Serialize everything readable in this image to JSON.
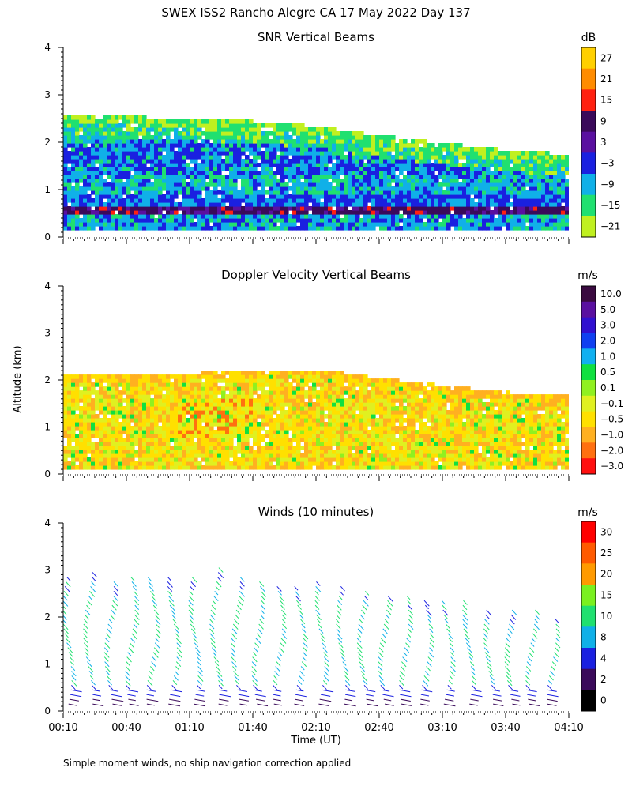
{
  "figure": {
    "title": "SWEX ISS2 Rancho Alegre CA  17 May 2022 Day 137",
    "ylabel": "Altitude (km)",
    "xlabel": "Time (UT)",
    "footnote": "Simple moment winds, no ship navigation correction applied",
    "time_ticks": [
      "00:10",
      "00:40",
      "01:10",
      "01:40",
      "02:10",
      "02:40",
      "03:10",
      "03:40",
      "04:10"
    ],
    "altitude_ticks": [
      "0",
      "1",
      "2",
      "3",
      "4"
    ]
  },
  "chart_data": [
    {
      "type": "heatmap",
      "title": "SNR Vertical Beams",
      "unit": "dB",
      "xlim": [
        "00:10",
        "04:10"
      ],
      "ylim": [
        0,
        4
      ],
      "colorbar_labels": [
        "27",
        "21",
        "15",
        "9",
        "3",
        "−3",
        "−9",
        "−15",
        "−21"
      ],
      "colorbar_colors": [
        "#ffd000",
        "#ff8c00",
        "#ff2010",
        "#3a0a5a",
        "#5a10a0",
        "#1a20e0",
        "#10b0e8",
        "#20e070",
        "#c0f020"
      ],
      "data_top_km": [
        [
          0.0,
          2.55
        ],
        [
          0.5,
          2.5
        ],
        [
          1.0,
          2.45
        ],
        [
          1.5,
          2.4
        ],
        [
          2.0,
          2.3
        ],
        [
          2.5,
          2.1
        ],
        [
          3.0,
          1.95
        ],
        [
          3.5,
          1.8
        ],
        [
          4.0,
          1.7
        ]
      ],
      "data_bottom_km": 0.15,
      "bands_km": [
        {
          "level": "-15",
          "from": 1.9,
          "to": 2.4
        },
        {
          "level": "-9",
          "from": 1.0,
          "to": 2.2
        },
        {
          "level": "-3",
          "from": 1.3,
          "to": 1.9
        },
        {
          "level": "3",
          "from": 0.55,
          "to": 0.75
        },
        {
          "level": "9",
          "from": 0.45,
          "to": 0.6
        }
      ]
    },
    {
      "type": "heatmap",
      "title": "Doppler Velocity Vertical Beams",
      "unit": "m/s",
      "xlim": [
        "00:10",
        "04:10"
      ],
      "ylim": [
        0,
        4
      ],
      "colorbar_labels": [
        "10.0",
        "5.0",
        "3.0",
        "2.0",
        "1.0",
        "0.5",
        "0.1",
        "−0.1",
        "−0.5",
        "−1.0",
        "−2.0",
        "−3.0"
      ],
      "colorbar_colors": [
        "#3a0a40",
        "#5a10a0",
        "#3010d0",
        "#1040f0",
        "#10b0f0",
        "#10e040",
        "#90f020",
        "#e0f020",
        "#ffe000",
        "#ffb020",
        "#ff7010",
        "#ff1010"
      ],
      "data_top_km": [
        [
          0.0,
          2.05
        ],
        [
          0.5,
          2.05
        ],
        [
          1.0,
          2.1
        ],
        [
          1.5,
          2.2
        ],
        [
          2.0,
          2.2
        ],
        [
          2.5,
          2.0
        ],
        [
          3.0,
          1.85
        ],
        [
          3.5,
          1.7
        ],
        [
          4.0,
          1.65
        ]
      ],
      "data_bottom_km": 0.1
    },
    {
      "type": "barbs",
      "title": "Winds (10 minutes)",
      "unit": "m/s",
      "xlim": [
        "00:10",
        "04:10"
      ],
      "ylim": [
        0,
        4
      ],
      "colorbar_labels": [
        "30",
        "25",
        "20",
        "15",
        "10",
        "8",
        "4",
        "2",
        "0"
      ],
      "colorbar_colors": [
        "#ff0000",
        "#ff5a00",
        "#ff9a00",
        "#7af020",
        "#20e070",
        "#10b0e8",
        "#1a20e0",
        "#3a0a5a",
        "#000000"
      ],
      "profiles": [
        {
          "time": "00:10",
          "top_km": 2.9
        },
        {
          "time": "00:20",
          "top_km": 3.0
        },
        {
          "time": "00:30",
          "top_km": 2.8
        },
        {
          "time": "00:40",
          "top_km": 2.9
        },
        {
          "time": "00:50",
          "top_km": 2.9
        },
        {
          "time": "01:00",
          "top_km": 2.9
        },
        {
          "time": "01:10",
          "top_km": 2.9
        },
        {
          "time": "01:20",
          "top_km": 3.1
        },
        {
          "time": "01:30",
          "top_km": 2.95
        },
        {
          "time": "01:40",
          "top_km": 2.8
        },
        {
          "time": "01:50",
          "top_km": 2.75
        },
        {
          "time": "02:00",
          "top_km": 2.7
        },
        {
          "time": "02:10",
          "top_km": 2.8
        },
        {
          "time": "02:20",
          "top_km": 2.75
        },
        {
          "time": "02:30",
          "top_km": 2.6
        },
        {
          "time": "02:40",
          "top_km": 2.5
        },
        {
          "time": "02:50",
          "top_km": 2.55
        },
        {
          "time": "03:00",
          "top_km": 2.45
        },
        {
          "time": "03:10",
          "top_km": 2.45
        },
        {
          "time": "03:20",
          "top_km": 2.4
        },
        {
          "time": "03:30",
          "top_km": 2.25
        },
        {
          "time": "03:40",
          "top_km": 2.2
        },
        {
          "time": "03:50",
          "top_km": 2.25
        },
        {
          "time": "04:00",
          "top_km": 2.05
        }
      ]
    }
  ]
}
